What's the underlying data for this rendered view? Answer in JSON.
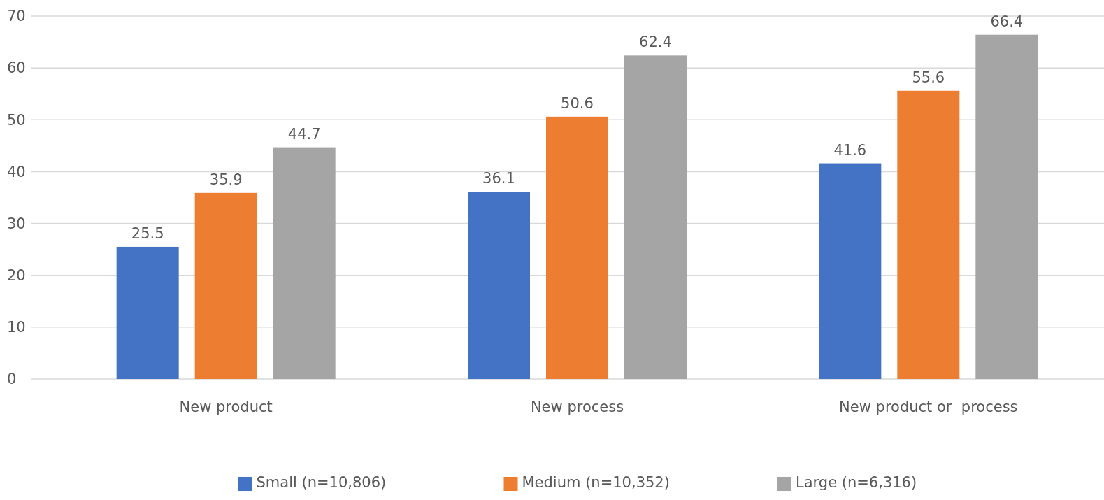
{
  "chart_data": {
    "type": "bar",
    "categories": [
      "New product",
      "New process",
      "New product or  process"
    ],
    "series": [
      {
        "name": "Small (n=10,806)",
        "color": "#4472c4",
        "values": [
          25.5,
          36.1,
          41.6
        ]
      },
      {
        "name": "Medium (n=10,352)",
        "color": "#ed7d31",
        "values": [
          35.9,
          50.6,
          55.6
        ]
      },
      {
        "name": "Large (n=6,316)",
        "color": "#a5a5a5",
        "values": [
          44.7,
          62.4,
          66.4
        ]
      }
    ],
    "ylim": [
      0,
      70
    ],
    "yticks": [
      0,
      10,
      20,
      30,
      40,
      50,
      60,
      70
    ],
    "grid": "y",
    "data_labels": true,
    "legend": "bottom"
  }
}
